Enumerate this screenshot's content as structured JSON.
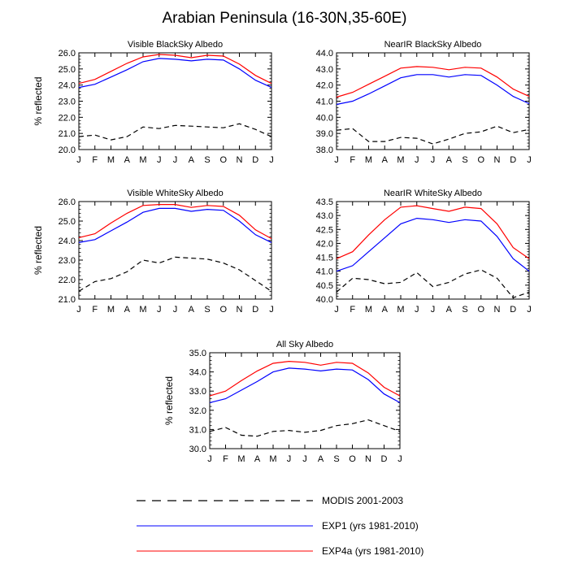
{
  "title": "Arabian Peninsula (16-30N,35-60E)",
  "months": [
    "J",
    "F",
    "M",
    "A",
    "M",
    "J",
    "J",
    "A",
    "S",
    "O",
    "N",
    "D",
    "J"
  ],
  "legend": [
    {
      "label": "MODIS 2001-2003",
      "color": "#000000",
      "dash": true
    },
    {
      "label": "EXP1 (yrs 1981-2010)",
      "color": "#0000ff",
      "dash": false
    },
    {
      "label": "EXP4a (yrs 1981-2010)",
      "color": "#ff0000",
      "dash": false
    }
  ],
  "chart_data": [
    {
      "type": "line",
      "title": "Visible BlackSky Albedo",
      "ylabel": "% reflected",
      "ylim": [
        20.0,
        26.0
      ],
      "yticks": [
        "20.0",
        "21.0",
        "22.0",
        "23.0",
        "24.0",
        "25.0",
        "26.0"
      ],
      "series": [
        {
          "name": "MODIS 2001-2003",
          "values": [
            20.8,
            20.9,
            20.6,
            20.8,
            21.4,
            21.3,
            21.5,
            21.45,
            21.4,
            21.35,
            21.6,
            21.25,
            20.8
          ]
        },
        {
          "name": "EXP1 (yrs 1981-2010)",
          "values": [
            23.85,
            24.05,
            24.5,
            24.95,
            25.45,
            25.65,
            25.6,
            25.5,
            25.6,
            25.55,
            25.0,
            24.3,
            23.85
          ]
        },
        {
          "name": "EXP4a (yrs 1981-2010)",
          "values": [
            24.1,
            24.35,
            24.85,
            25.35,
            25.75,
            25.9,
            25.85,
            25.7,
            25.85,
            25.8,
            25.3,
            24.6,
            24.1
          ]
        }
      ]
    },
    {
      "type": "line",
      "title": "NearIR BlackSky Albedo",
      "ylabel": "",
      "ylim": [
        38.0,
        44.0
      ],
      "yticks": [
        "38.0",
        "39.0",
        "40.0",
        "41.0",
        "42.0",
        "43.0",
        "44.0"
      ],
      "series": [
        {
          "name": "MODIS 2001-2003",
          "values": [
            39.2,
            39.3,
            38.5,
            38.5,
            38.75,
            38.7,
            38.35,
            38.65,
            39.0,
            39.1,
            39.45,
            39.05,
            39.25
          ]
        },
        {
          "name": "EXP1 (yrs 1981-2010)",
          "values": [
            40.8,
            41.0,
            41.45,
            41.95,
            42.45,
            42.65,
            42.65,
            42.5,
            42.65,
            42.6,
            42.0,
            41.3,
            40.85
          ]
        },
        {
          "name": "EXP4a (yrs 1981-2010)",
          "values": [
            41.25,
            41.55,
            42.05,
            42.55,
            43.05,
            43.15,
            43.1,
            42.95,
            43.1,
            43.05,
            42.5,
            41.75,
            41.3
          ]
        }
      ]
    },
    {
      "type": "line",
      "title": "Visible WhiteSky Albedo",
      "ylabel": "% reflected",
      "ylim": [
        21.0,
        26.0
      ],
      "yticks": [
        "21.0",
        "22.0",
        "23.0",
        "24.0",
        "25.0",
        "26.0"
      ],
      "series": [
        {
          "name": "MODIS 2001-2003",
          "values": [
            21.4,
            21.9,
            22.05,
            22.4,
            23.0,
            22.85,
            23.15,
            23.1,
            23.05,
            22.85,
            22.5,
            21.95,
            21.4
          ]
        },
        {
          "name": "EXP1 (yrs 1981-2010)",
          "values": [
            23.9,
            24.05,
            24.5,
            24.95,
            25.45,
            25.65,
            25.65,
            25.5,
            25.6,
            25.55,
            25.0,
            24.3,
            23.9
          ]
        },
        {
          "name": "EXP4a (yrs 1981-2010)",
          "values": [
            24.15,
            24.35,
            24.9,
            25.4,
            25.8,
            25.85,
            25.85,
            25.7,
            25.8,
            25.75,
            25.3,
            24.55,
            24.1
          ]
        }
      ]
    },
    {
      "type": "line",
      "title": "NearIR WhiteSky Albedo",
      "ylabel": "",
      "ylim": [
        40.0,
        43.5
      ],
      "yticks": [
        "40.0",
        "40.5",
        "41.0",
        "41.5",
        "42.0",
        "42.5",
        "43.0",
        "43.5"
      ],
      "series": [
        {
          "name": "MODIS 2001-2003",
          "values": [
            40.25,
            40.75,
            40.7,
            40.55,
            40.6,
            40.95,
            40.45,
            40.6,
            40.9,
            41.05,
            40.75,
            40.05,
            40.25
          ]
        },
        {
          "name": "EXP1 (yrs 1981-2010)",
          "values": [
            41.0,
            41.2,
            41.7,
            42.2,
            42.7,
            42.9,
            42.85,
            42.75,
            42.85,
            42.8,
            42.25,
            41.45,
            41.0
          ]
        },
        {
          "name": "EXP4a (yrs 1981-2010)",
          "values": [
            41.45,
            41.7,
            42.3,
            42.85,
            43.3,
            43.35,
            43.25,
            43.15,
            43.3,
            43.25,
            42.7,
            41.85,
            41.45
          ]
        }
      ]
    },
    {
      "type": "line",
      "title": "All Sky Albedo",
      "ylabel": "% reflected",
      "ylim": [
        30.0,
        35.0
      ],
      "yticks": [
        "30.0",
        "31.0",
        "32.0",
        "33.0",
        "34.0",
        "35.0"
      ],
      "series": [
        {
          "name": "MODIS 2001-2003",
          "values": [
            30.9,
            31.1,
            30.7,
            30.65,
            30.9,
            30.95,
            30.85,
            30.95,
            31.2,
            31.3,
            31.5,
            31.2,
            30.9
          ]
        },
        {
          "name": "EXP1 (yrs 1981-2010)",
          "values": [
            32.4,
            32.6,
            33.05,
            33.5,
            34.0,
            34.2,
            34.15,
            34.05,
            34.15,
            34.1,
            33.6,
            32.85,
            32.4
          ]
        },
        {
          "name": "EXP4a (yrs 1981-2010)",
          "values": [
            32.75,
            33.0,
            33.55,
            34.05,
            34.45,
            34.55,
            34.5,
            34.35,
            34.5,
            34.45,
            33.95,
            33.2,
            32.75
          ]
        }
      ]
    }
  ]
}
